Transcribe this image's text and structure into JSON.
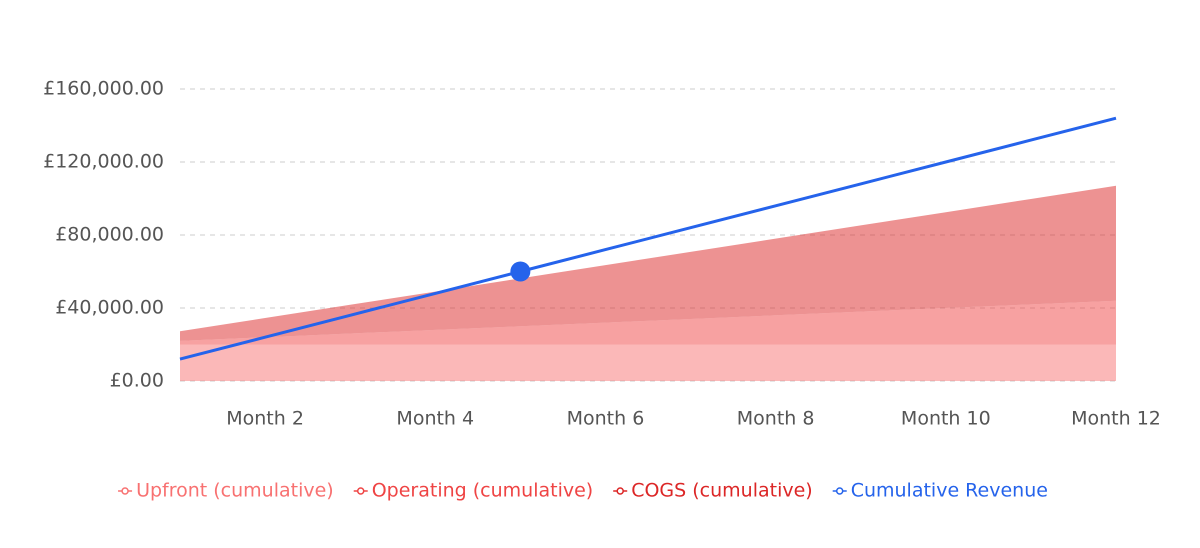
{
  "chart_data": {
    "type": "stacked-area-line",
    "categories": [
      null,
      "Month 2",
      null,
      "Month 4",
      null,
      "Month 6",
      null,
      "Month 8",
      null,
      "Month 10",
      null,
      "Month 12"
    ],
    "series": [
      {
        "name": "Upfront (cumulative)",
        "color": "#f87171",
        "kind": "area",
        "values": [
          20000,
          20000,
          20000,
          20000,
          20000,
          20000,
          20000,
          20000,
          20000,
          20000,
          20000,
          20000
        ]
      },
      {
        "name": "Operating (cumulative)",
        "color": "#ef4444",
        "kind": "area",
        "values": [
          2000,
          4000,
          6000,
          8000,
          10000,
          12000,
          14000,
          16000,
          18000,
          20000,
          22000,
          24000
        ]
      },
      {
        "name": "COGS (cumulative)",
        "color": "#dc2626",
        "kind": "area",
        "values": [
          5250,
          10500,
          15750,
          21000,
          26250,
          31500,
          36750,
          42000,
          47250,
          52500,
          57750,
          63000
        ]
      },
      {
        "name": "Cumulative Revenue",
        "color": "#2563eb",
        "kind": "line",
        "values": [
          12000,
          24000,
          36000,
          48000,
          60000,
          72000,
          84000,
          96000,
          108000,
          120000,
          132000,
          144000
        ]
      }
    ],
    "ylim": [
      0,
      160000
    ],
    "yticks": [
      {
        "value": 0,
        "label": "£0.00"
      },
      {
        "value": 40000,
        "label": "£40,000.00"
      },
      {
        "value": 80000,
        "label": "£80,000.00"
      },
      {
        "value": 120000,
        "label": "£120,000.00"
      },
      {
        "value": 160000,
        "label": "£160,000.00"
      }
    ],
    "grid": true,
    "legend": "bottom"
  }
}
